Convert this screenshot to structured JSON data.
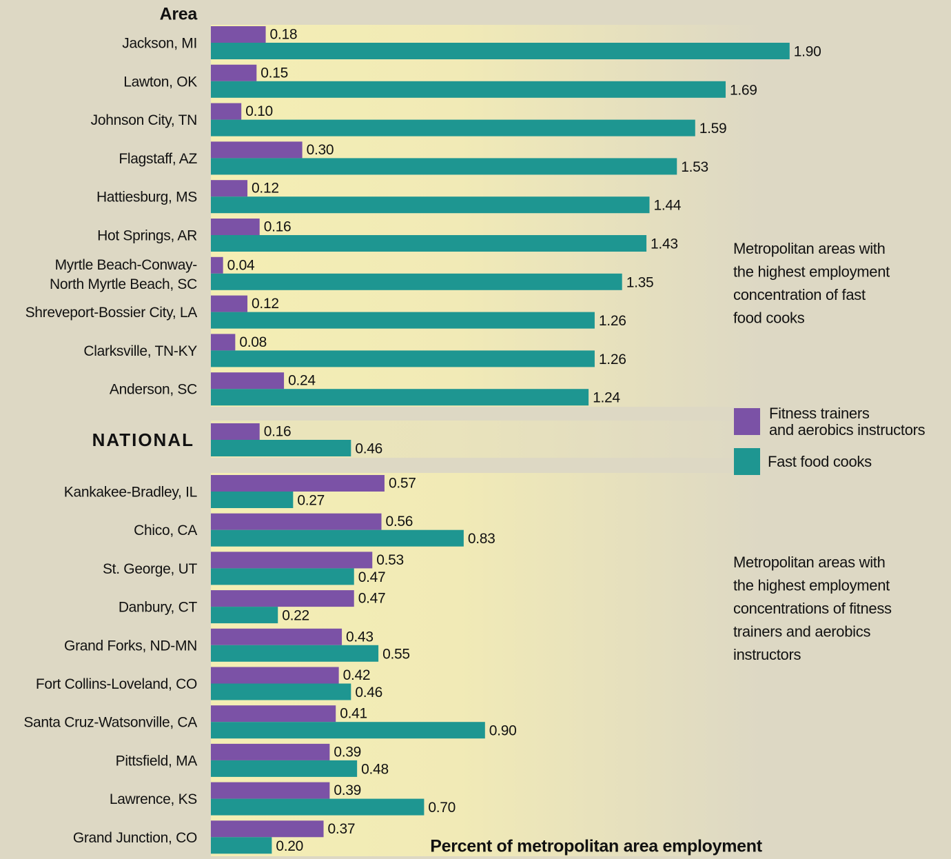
{
  "chart_data": {
    "type": "bar",
    "orientation": "horizontal",
    "title": "Area",
    "x_label": "Percent of metropolitan area employment",
    "annotations": [
      "Metropolitan areas with\nthe highest employment\nconcentration of fast\nfood cooks",
      "Metropolitan areas with\nthe highest employment\nconcentrations of fitness\ntrainers and aerobics\ninstructors"
    ],
    "categories": [
      "Jackson, MI",
      "Lawton, OK",
      "Johnson City, TN",
      "Flagstaff, AZ",
      "Hattiesburg, MS",
      "Hot Springs, AR",
      "Myrtle Beach-Conway-\nNorth Myrtle Beach, SC",
      "Shreveport-Bossier City, LA",
      "Clarksville, TN-KY",
      "Anderson, SC",
      "NATIONAL",
      "Kankakee-Bradley, IL",
      "Chico, CA",
      "St. George, UT",
      "Danbury, CT",
      "Grand Forks, ND-MN",
      "Fort Collins-Loveland, CO",
      "Santa Cruz-Watsonville, CA",
      "Pittsfield, MA",
      "Lawrence, KS",
      "Grand Junction, CO"
    ],
    "series": [
      {
        "name": "Fitness trainers\nand aerobics instructors",
        "color": "#7b52a6",
        "values": [
          0.18,
          0.15,
          0.1,
          0.3,
          0.12,
          0.16,
          0.04,
          0.12,
          0.08,
          0.24,
          0.16,
          0.57,
          0.56,
          0.53,
          0.47,
          0.43,
          0.42,
          0.41,
          0.39,
          0.39,
          0.37
        ],
        "value_labels": [
          "0.18",
          "0.15",
          "0.10",
          "0.30",
          "0.12",
          "0.16",
          "0.04",
          "0.12",
          "0.08",
          "0.24",
          "0.16",
          "0.57",
          "0.56",
          "0.53",
          "0.47",
          "0.43",
          "0.42",
          "0.41",
          "0.39",
          "0.39",
          "0.37"
        ]
      },
      {
        "name": "Fast food cooks",
        "color": "#1e9691",
        "values": [
          1.9,
          1.69,
          1.59,
          1.53,
          1.44,
          1.43,
          1.35,
          1.26,
          1.26,
          1.24,
          0.46,
          0.27,
          0.83,
          0.47,
          0.22,
          0.55,
          0.46,
          0.9,
          0.48,
          0.7,
          0.2
        ],
        "value_labels": [
          "1.90",
          "1.69",
          "1.59",
          "1.53",
          "1.44",
          "1.43",
          "1.35",
          "1.26",
          "1.26",
          "1.24",
          "0.46",
          "0.27",
          "0.83",
          "0.47",
          "0.22",
          "0.55",
          "0.46",
          "0.90",
          "0.48",
          "0.70",
          "0.20"
        ]
      }
    ],
    "xlim": [
      0,
      2
    ]
  }
}
